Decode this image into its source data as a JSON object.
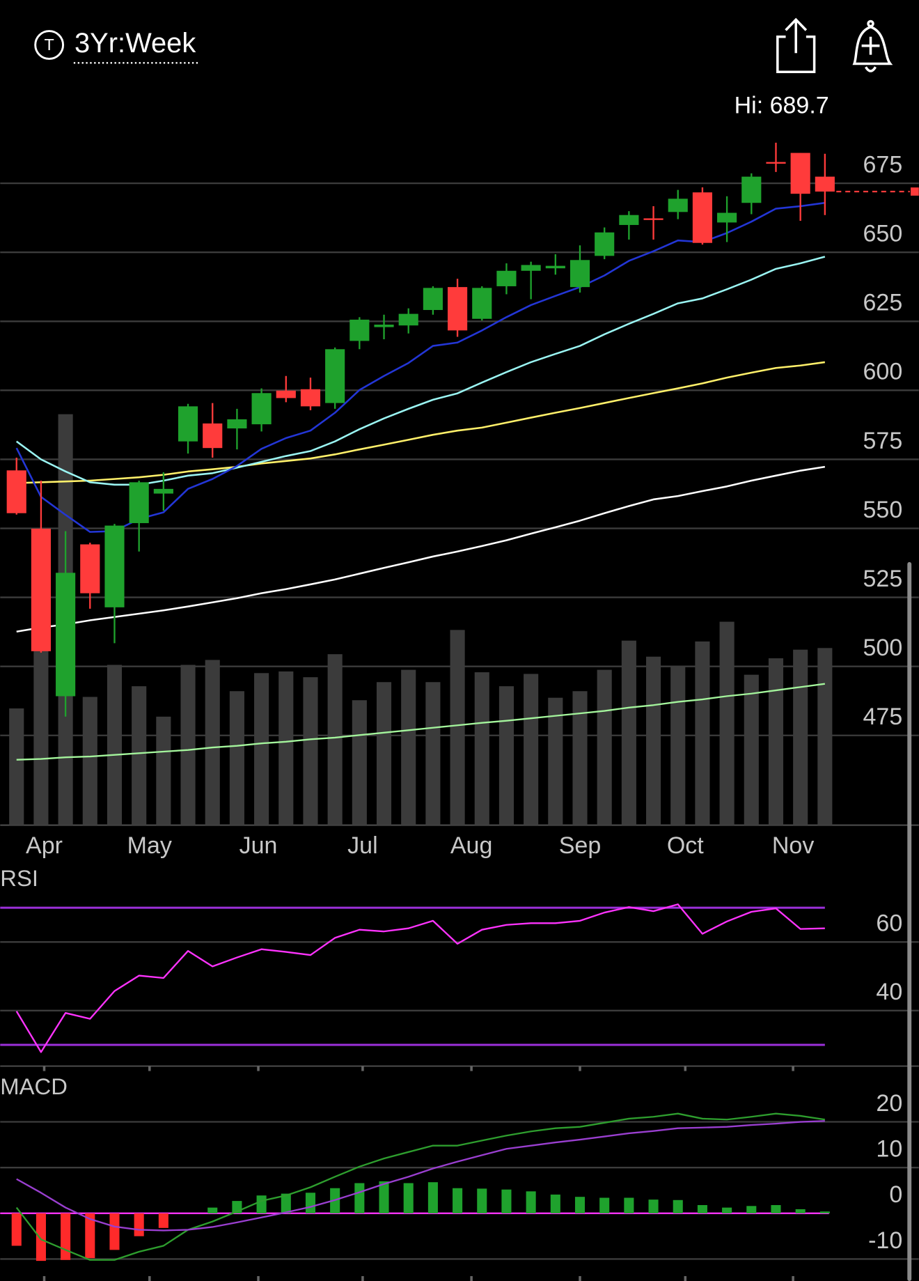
{
  "header": {
    "title": "3Yr:Week"
  },
  "chart_data": [
    {
      "type": "candlestick",
      "high_label": "Hi: 689.7",
      "xlim": [
        -0.667,
        36.833
      ],
      "xticks": [
        {
          "value": 1.13,
          "label": "Apr"
        },
        {
          "value": 5.43,
          "label": "May"
        },
        {
          "value": 9.87,
          "label": "Jun"
        },
        {
          "value": 14.13,
          "label": "Jul"
        },
        {
          "value": 18.57,
          "label": "Aug"
        },
        {
          "value": 23,
          "label": "Sep"
        },
        {
          "value": 27.3,
          "label": "Oct"
        },
        {
          "value": 31.7,
          "label": "Nov"
        }
      ],
      "ylim": [
        442.5,
        697
      ],
      "yticks": [
        475,
        500,
        525,
        550,
        575,
        600,
        625,
        650,
        675
      ],
      "grid": true,
      "up_color": "#1fa22d",
      "down_color": "#ff3b3b",
      "open": [
        571,
        549.9,
        489.2,
        544.2,
        521.4,
        551.9,
        562.6,
        581.5,
        588,
        586.2,
        587.7,
        599.9,
        600.4,
        595.4,
        617.9,
        622.9,
        623.5,
        629.1,
        637.4,
        625.9,
        637.7,
        643.3,
        644.2,
        637.4,
        648.7,
        659.9,
        662.3,
        664.6,
        671.7,
        660.8,
        667.9,
        682.7,
        686,
        677.4
      ],
      "high": [
        575.6,
        567.3,
        549,
        544.8,
        551.6,
        567.3,
        570.3,
        595.1,
        595.4,
        593.3,
        600.7,
        605.2,
        604.6,
        615.5,
        626.5,
        627.4,
        629.7,
        637.7,
        640.4,
        637.7,
        646,
        646.6,
        649.3,
        652.5,
        659,
        664.9,
        666.7,
        672.6,
        673.5,
        670.3,
        678.6,
        689.7,
        686,
        685.7
      ],
      "low": [
        555,
        505,
        481.8,
        520.9,
        508.4,
        541.6,
        556.4,
        577.1,
        575.6,
        578.6,
        585.1,
        595.7,
        592.8,
        593.3,
        614.9,
        618.5,
        620.6,
        627.4,
        619.4,
        625.3,
        634.8,
        633,
        641.9,
        635.4,
        647.5,
        654.6,
        654.6,
        662,
        652.8,
        653.7,
        663.8,
        679.1,
        661.4,
        663.5
      ],
      "close": [
        555.5,
        505.5,
        533.9,
        526.5,
        551,
        566.7,
        564.3,
        594.2,
        579.1,
        589.5,
        599,
        597.2,
        594.2,
        614.9,
        625.6,
        623.8,
        627.7,
        637.1,
        621.7,
        637.1,
        643.3,
        645.4,
        645.1,
        647.2,
        657.2,
        663.5,
        661.7,
        669.4,
        653.4,
        664.3,
        677.4,
        682.1,
        671.2,
        672
      ],
      "last": 672,
      "last_color": "#ff3b3b",
      "moving_averages": [
        {
          "color": "#ffffff",
          "values": [
            512.6,
            514.1,
            515.2,
            516.7,
            517.9,
            519.1,
            520.3,
            521.7,
            523.2,
            524.7,
            526.5,
            528,
            529.7,
            531.5,
            533.6,
            535.7,
            537.7,
            539.8,
            541.6,
            543.6,
            545.7,
            548.1,
            550.4,
            552.8,
            555.5,
            558.1,
            560.5,
            561.7,
            563.5,
            565.2,
            567.3,
            569.1,
            570.9,
            572.3
          ]
        },
        {
          "color": "#fff06a",
          "values": [
            566.4,
            566.7,
            567,
            567.3,
            567.9,
            568.5,
            569.4,
            570.6,
            571.4,
            572.3,
            573.5,
            574.4,
            575.3,
            576.8,
            578.6,
            580.3,
            582.1,
            583.9,
            585.4,
            586.5,
            588.3,
            590.1,
            591.9,
            593.6,
            595.4,
            597.2,
            599,
            600.7,
            602.5,
            604.6,
            606.4,
            608.1,
            609,
            610.2
          ]
        },
        {
          "color": "#9af4f2",
          "values": [
            581.5,
            575,
            570.6,
            566.7,
            565.8,
            565.8,
            567.3,
            569.1,
            570,
            572,
            574.1,
            576.2,
            578,
            581.5,
            585.9,
            589.8,
            593.3,
            596.6,
            598.9,
            602.8,
            606.6,
            610.2,
            613.2,
            616.1,
            620.3,
            624.1,
            627.7,
            631.5,
            633.3,
            636.6,
            640.1,
            644,
            646,
            648.4
          ]
        },
        {
          "color": "#2336d6",
          "values": [
            579.1,
            561.4,
            554.9,
            548.7,
            549,
            553.4,
            555.8,
            564.3,
            567.9,
            572.6,
            578.8,
            582.7,
            585.4,
            591.9,
            600.1,
            605.2,
            609.9,
            616.1,
            617.3,
            621.7,
            626.5,
            630.9,
            634.2,
            637.4,
            641.6,
            646.9,
            650.4,
            654.3,
            653.7,
            657,
            661.1,
            665.8,
            666.7,
            667.9
          ]
        }
      ],
      "volume": {
        "color": "#3b3b3b",
        "lim": [
          0,
          100
        ],
        "values": [
          28.4,
          45.7,
          100,
          31.2,
          39,
          33.8,
          26.4,
          39,
          40.2,
          32.6,
          37,
          37.4,
          36,
          41.6,
          30.4,
          34.8,
          37.8,
          34.8,
          47.5,
          37.2,
          33.8,
          36.8,
          31,
          32.6,
          37.8,
          44.9,
          41,
          38.8,
          44.7,
          49.5,
          36.6,
          40.6,
          42.7,
          43.1
        ],
        "ma": {
          "color": "#a4f59c",
          "values": [
            15.9,
            16.1,
            16.5,
            16.7,
            17.1,
            17.5,
            17.9,
            18.3,
            18.9,
            19.3,
            19.9,
            20.3,
            20.9,
            21.3,
            21.9,
            22.5,
            23.1,
            23.7,
            24.3,
            24.9,
            25.4,
            26,
            26.6,
            27.2,
            27.8,
            28.6,
            29.2,
            30,
            30.6,
            31.4,
            32,
            32.8,
            33.6,
            34.4
          ]
        }
      }
    },
    {
      "type": "line",
      "title": "RSI",
      "ylim": [
        23.8,
        81.7
      ],
      "yticks": [
        40,
        60
      ],
      "grid": true,
      "color": "#ff33ff",
      "values": [
        39.8,
        27.9,
        39.3,
        37.6,
        45.7,
        50.2,
        49.5,
        57.4,
        52.9,
        55.5,
        57.9,
        57.1,
        56.2,
        61.2,
        63.6,
        63.1,
        64,
        66.2,
        59.5,
        63.6,
        65,
        65.5,
        65.5,
        66.2,
        68.6,
        70.2,
        69,
        71,
        62.4,
        66,
        68.8,
        69.8,
        63.8,
        64
      ],
      "levels": [
        70,
        30
      ],
      "levels_color": "#9b30d9"
    },
    {
      "type": "macd",
      "title": "MACD",
      "ylim": [
        -14.8,
        29.5
      ],
      "yticks": [
        -10,
        0,
        10,
        20
      ],
      "grid": true,
      "zero_color": "#ff33ff",
      "histogram": {
        "up_color": "#1fa22d",
        "down_color": "#ff2a2a",
        "values": [
          -7.1,
          -10.4,
          -10.2,
          -9.8,
          -8,
          -5,
          -3.2,
          0,
          1.25,
          2.7,
          3.9,
          4.3,
          4.5,
          5.5,
          6.6,
          7,
          6.6,
          6.8,
          5.5,
          5.4,
          5.2,
          4.8,
          4.1,
          3.6,
          3.4,
          3.4,
          3,
          2.9,
          1.8,
          1.25,
          1.6,
          1.8,
          0.9,
          0.4
        ]
      },
      "series": [
        {
          "color": "#2e9e2e",
          "values": [
            1.25,
            -5.7,
            -8,
            -10.2,
            -10.2,
            -8.4,
            -7.1,
            -3.6,
            -1.8,
            0.4,
            2.7,
            3.9,
            5.7,
            8,
            10.2,
            12,
            13.4,
            14.8,
            14.8,
            15.9,
            17,
            17.9,
            18.6,
            18.9,
            19.8,
            20.7,
            21.1,
            21.8,
            20.7,
            20.5,
            21.1,
            21.8,
            21.3,
            20.5
          ]
        },
        {
          "color": "#9a3fd0",
          "values": [
            7.5,
            4.5,
            1.25,
            -1.25,
            -2.9,
            -3.6,
            -3.75,
            -3.6,
            -3,
            -2,
            -0.9,
            0.2,
            1.4,
            2.9,
            4.6,
            6.4,
            8,
            9.8,
            11.3,
            12.7,
            14.1,
            14.8,
            15.5,
            16.1,
            16.8,
            17.5,
            18,
            18.6,
            18.75,
            18.9,
            19.3,
            19.6,
            20,
            20.2
          ]
        }
      ]
    }
  ]
}
